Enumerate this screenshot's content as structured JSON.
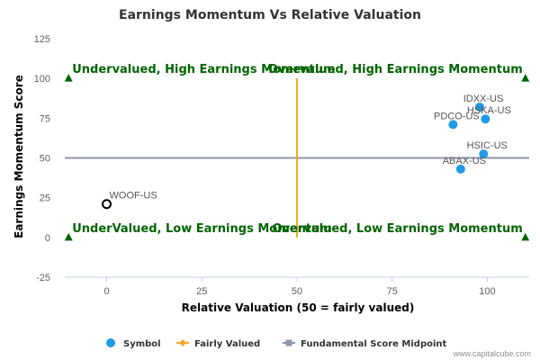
{
  "chart_data": {
    "type": "scatter",
    "title": "Earnings Momentum Vs Relative Valuation",
    "xlabel": "Relative Valuation (50 = fairly valued)",
    "ylabel": "Earnings Momentum Score",
    "xlim": [
      -11,
      111
    ],
    "ylim": [
      -25,
      125
    ],
    "x_ticks": [
      0,
      25,
      50,
      75,
      100
    ],
    "y_ticks": [
      -25,
      0,
      25,
      50,
      75,
      100,
      125
    ],
    "grid": false,
    "legend_position": "bottom",
    "series": [
      {
        "name": "Symbol",
        "color": "#1f9be8",
        "points": [
          {
            "label": "IDXX-US",
            "x": 98,
            "y": 82
          },
          {
            "label": "HSKA-US",
            "x": 99.5,
            "y": 74.5
          },
          {
            "label": "PDCO-US",
            "x": 91,
            "y": 71
          },
          {
            "label": "HSIC-US",
            "x": 99,
            "y": 52.5
          },
          {
            "label": "ABAX-US",
            "x": 93,
            "y": 43
          },
          {
            "label": "WOOF-US",
            "x": 0,
            "y": 21,
            "highlight": true
          }
        ]
      },
      {
        "name": "Fairly Valued",
        "color": "#f5a623",
        "points": [
          {
            "x": 50,
            "y": 0
          },
          {
            "x": 50,
            "y": 100
          }
        ]
      },
      {
        "name": "Fundamental Score Midpoint",
        "color": "#8d96a8",
        "points": [
          {
            "x": -11,
            "y": 50
          },
          {
            "x": 111,
            "y": 50
          }
        ]
      }
    ],
    "quadrant_markers": [
      {
        "x": -10,
        "y": 100
      },
      {
        "x": 110,
        "y": 100
      },
      {
        "x": -10,
        "y": 0
      },
      {
        "x": 110,
        "y": 0
      }
    ],
    "annotations": [
      {
        "text": "Undervalued, High Earnings Momentum",
        "x": -10,
        "y": 100,
        "anchor": "start"
      },
      {
        "text": "Overvalued, High Earnings Momentum",
        "x": 110,
        "y": 100,
        "anchor": "end"
      },
      {
        "text": "UnderValued, Low Earnings Momentum",
        "x": -10,
        "y": 0,
        "anchor": "start"
      },
      {
        "text": "Overvalued, Low Earnings Momentum",
        "x": 110,
        "y": 0,
        "anchor": "end"
      }
    ],
    "annotation_color": "#006400",
    "marker_color": "#006400"
  },
  "credit": "www.capitalcube.com"
}
